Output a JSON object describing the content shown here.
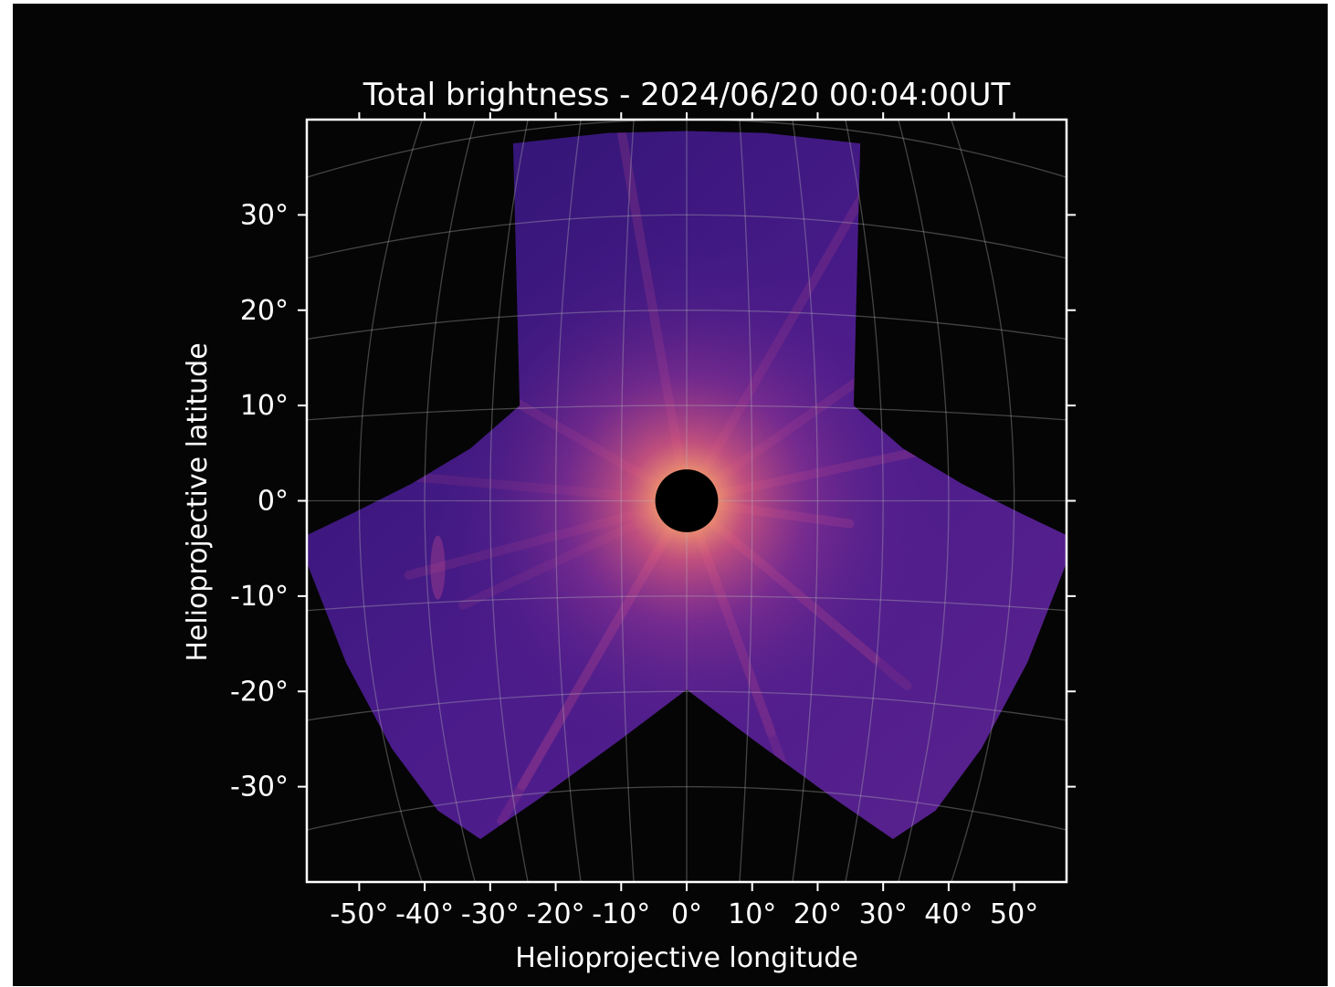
{
  "chart_data": {
    "type": "heatmap",
    "title": "Total brightness - 2024/06/20 00:04:00UT",
    "xlabel": "Helioprojective longitude",
    "ylabel": "Helioprojective latitude",
    "xlim": [
      -58,
      58
    ],
    "ylim": [
      -40,
      40
    ],
    "x_ticks": [
      -50,
      -40,
      -30,
      -20,
      -10,
      0,
      10,
      20,
      30,
      40,
      50
    ],
    "x_tick_labels": [
      "-50°",
      "-40°",
      "-30°",
      "-20°",
      "-10°",
      "0°",
      "10°",
      "20°",
      "30°",
      "40°",
      "50°"
    ],
    "y_ticks": [
      30,
      20,
      10,
      0,
      -10,
      -20,
      -30
    ],
    "y_tick_labels": [
      "30°",
      "20°",
      "10°",
      "0°",
      "-10°",
      "-20°",
      "-30°"
    ],
    "grid": true,
    "colormap": "magma",
    "background_color": "#050505",
    "grid_color": "#bbbbbb",
    "occulter": {
      "center_deg": [
        0,
        0
      ],
      "radius_deg": 4.8
    },
    "coverage_outline_deg": [
      [
        -26.5,
        37.5
      ],
      [
        -12,
        38.6
      ],
      [
        0,
        38.8
      ],
      [
        12,
        38.6
      ],
      [
        26.5,
        37.5
      ],
      [
        25.5,
        10
      ],
      [
        33,
        5.5
      ],
      [
        42,
        1.8
      ],
      [
        51,
        -1.3
      ],
      [
        58,
        -3.6
      ],
      [
        58,
        -6.5
      ],
      [
        52,
        -17
      ],
      [
        45,
        -26
      ],
      [
        38,
        -32.5
      ],
      [
        31.5,
        -35.5
      ],
      [
        22,
        -31
      ],
      [
        10,
        -25
      ],
      [
        0,
        -19.8
      ],
      [
        -10,
        -25
      ],
      [
        -22,
        -31
      ],
      [
        -31.5,
        -35.5
      ],
      [
        -38,
        -32.5
      ],
      [
        -45,
        -26
      ],
      [
        -52,
        -17
      ],
      [
        -58,
        -6.5
      ],
      [
        -58,
        -3.6
      ],
      [
        -51,
        -1.3
      ],
      [
        -42,
        1.8
      ],
      [
        -33,
        5.5
      ],
      [
        -25.5,
        10
      ]
    ],
    "bright_features_deg": [
      {
        "x": -38,
        "y": -7,
        "note": ""
      }
    ]
  }
}
